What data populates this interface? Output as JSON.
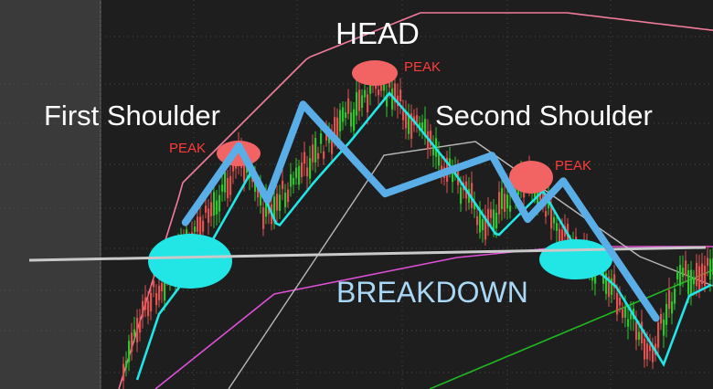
{
  "chart_data": {
    "type": "line",
    "annotations": {
      "head": "HEAD",
      "first_shoulder": "First Shoulder",
      "second_shoulder": "Second Shoulder",
      "peak_left": "PEAK",
      "peak_head": "PEAK",
      "peak_right": "PEAK",
      "breakdown": "BREAKDOWN"
    },
    "pattern_path": [
      [
        0.26,
        0.36
      ],
      [
        0.335,
        0.6
      ],
      [
        0.375,
        0.43
      ],
      [
        0.425,
        0.73
      ],
      [
        0.54,
        0.45
      ],
      [
        0.69,
        0.57
      ],
      [
        0.74,
        0.37
      ],
      [
        0.79,
        0.49
      ],
      [
        0.92,
        0.06
      ]
    ],
    "neckline": [
      [
        0.04,
        0.33
      ],
      [
        0.99,
        0.36
      ]
    ],
    "colors": {
      "pattern": "#5aaee8",
      "neckline": "#c9c9c9",
      "peak_marker": "#f26464",
      "support_marker": "#22e6e6",
      "ma_fast": "#22e6e6",
      "ma_mid": "#b8b8b8",
      "ma_slow": "#1fb81f",
      "band_upper": "#f07b9a",
      "band_lower": "#e04fd8",
      "candle_up": "#2fc52f",
      "candle_down": "#e25050",
      "breakdown_text": "#a8d8f5",
      "peak_text": "#ff3b3b"
    }
  }
}
